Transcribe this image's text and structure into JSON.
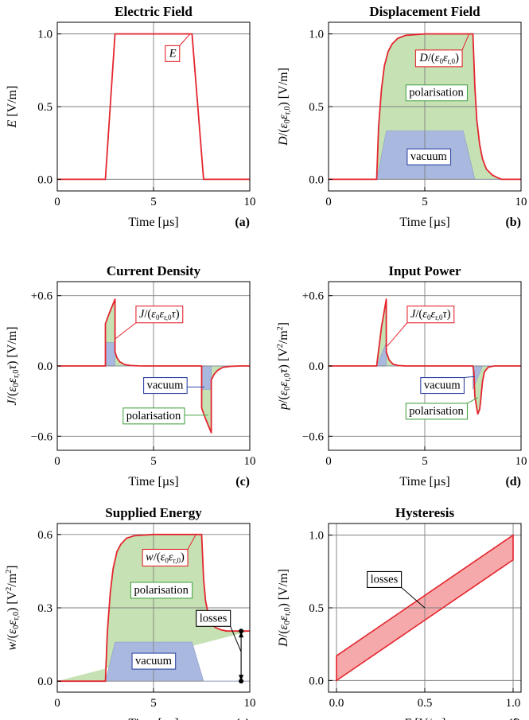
{
  "colors": {
    "curve": "#e3262e",
    "polarisation_fill": "#c6e2b4",
    "vacuum_fill": "#a9b8de",
    "losses_fill": "#f6a9aa",
    "polarisation_box": "#4aa64a",
    "vacuum_box": "#3348a5",
    "curve_box": "#e3262e"
  },
  "labels": {
    "polarisation": "polarisation",
    "vacuum": "vacuum",
    "losses": "losses",
    "time_axis": "Time [µs]"
  },
  "chart_data": [
    {
      "id": "a",
      "letter": "(a)",
      "type": "line",
      "title": "Electric Field",
      "ylabel_html": "<tspan font-style='italic'>E</tspan> [V/m]",
      "xlim": [
        0,
        10
      ],
      "ylim": [
        -0.08,
        1.08
      ],
      "xticks": [
        0,
        5,
        10
      ],
      "xticklabels": [
        "0",
        "5",
        "10"
      ],
      "yticks": [
        0,
        0.5,
        1
      ],
      "yticklabels": [
        "0.0",
        "0.5",
        "1.0"
      ],
      "grid": true,
      "series": [
        {
          "x": [
            0,
            2.5,
            3,
            7,
            7.6,
            10
          ],
          "y": [
            0,
            0,
            1,
            1,
            0,
            0
          ]
        }
      ],
      "callouts": [
        {
          "text_html": "<tspan font-style='italic'>E</tspan>",
          "at": [
            6.9,
            1.0
          ],
          "box_center": [
            6.0,
            0.87
          ],
          "color": "curve"
        }
      ]
    },
    {
      "id": "b",
      "letter": "(b)",
      "type": "area",
      "title": "Displacement Field",
      "ylabel_html": "<tspan font-style='italic'>D</tspan>/(<tspan font-style='italic'>ε</tspan><tspan font-size='10' dy='3'>0</tspan><tspan dy='-3' font-style='italic'>ε</tspan><tspan font-size='10' dy='3'>r,0</tspan><tspan dy='-3'>) [V/m]</tspan>",
      "xlim": [
        0,
        10
      ],
      "ylim": [
        -0.08,
        1.08
      ],
      "xticks": [
        0,
        5,
        10
      ],
      "xticklabels": [
        "0",
        "5",
        "10"
      ],
      "yticks": [
        0,
        0.5,
        1
      ],
      "yticklabels": [
        "0.0",
        "0.5",
        "1.0"
      ],
      "grid": true,
      "series": [
        {
          "role": "polarisation",
          "x": [
            0,
            2.5,
            2.6,
            2.75,
            2.9,
            3.1,
            3.3,
            3.6,
            4,
            5,
            6,
            7,
            7.35,
            7.5,
            7.6,
            7.7,
            7.85,
            8,
            8.2,
            8.5,
            8.8,
            9,
            10
          ],
          "y": [
            0,
            0,
            0.36,
            0.62,
            0.78,
            0.88,
            0.93,
            0.97,
            0.99,
            1,
            1,
            1,
            1,
            1,
            0.64,
            0.41,
            0.24,
            0.14,
            0.07,
            0.03,
            0.01,
            0,
            0
          ]
        },
        {
          "role": "vacuum",
          "x": [
            0,
            2.5,
            3,
            7,
            7.6,
            10
          ],
          "y": [
            0,
            0,
            0.333,
            0.333,
            0,
            0
          ]
        }
      ],
      "callouts": [
        {
          "text_html": "<tspan font-style='italic'>D</tspan>/(<tspan font-style='italic'>ε</tspan><tspan font-size='9' dy='3'>0</tspan><tspan dy='-3' font-style='italic'>ε</tspan><tspan font-size='9' dy='3'>r,0</tspan><tspan dy='-3'>)</tspan>",
          "at": [
            7.3,
            1.0
          ],
          "box_center": [
            5.75,
            0.84
          ],
          "color": "curve"
        },
        {
          "text_key": "polarisation",
          "box_center": [
            5.6,
            0.6
          ],
          "color": "polarisation_box"
        },
        {
          "text_key": "vacuum",
          "box_center": [
            5.2,
            0.16
          ],
          "color": "vacuum_box"
        }
      ]
    },
    {
      "id": "c",
      "letter": "(c)",
      "type": "area",
      "title": "Current Density",
      "ylabel_html": "<tspan font-style='italic'>J</tspan>/(<tspan font-style='italic'>ε</tspan><tspan font-size='10' dy='3'>0</tspan><tspan dy='-3' font-style='italic'>ε</tspan><tspan font-size='10' dy='3'>r,0</tspan><tspan dy='-3' font-style='italic'>τ</tspan><tspan>) [V/m]</tspan>",
      "xlim": [
        0,
        10
      ],
      "ylim": [
        -0.72,
        0.72
      ],
      "xticks": [
        0,
        5,
        10
      ],
      "xticklabels": [
        "0",
        "5",
        "10"
      ],
      "yticks": [
        -0.6,
        0,
        0.6
      ],
      "yticklabels": [
        "−0.6",
        "0.0",
        "+0.6"
      ],
      "grid": true,
      "series": [
        {
          "role": "polarisation",
          "x": [
            0,
            2.5,
            2.5,
            2.7,
            2.9,
            3.0,
            3.0,
            3.1,
            3.25,
            3.5,
            3.8,
            4.2,
            4.6,
            7.5,
            7.5,
            7.7,
            7.9,
            8.0,
            8.0,
            8.15,
            8.35,
            8.6,
            9.0,
            9.5,
            10
          ],
          "y": [
            0,
            0,
            0.36,
            0.45,
            0.53,
            0.57,
            0.12,
            0.07,
            0.035,
            0.012,
            0.004,
            0.001,
            0,
            0,
            -0.36,
            -0.45,
            -0.53,
            -0.57,
            -0.12,
            -0.07,
            -0.035,
            -0.012,
            -0.003,
            0,
            0
          ]
        },
        {
          "role": "vacuum",
          "x": [
            0,
            2.5,
            2.5,
            3.0,
            3.0,
            7.5,
            7.5,
            8.0,
            8.0,
            10
          ],
          "y": [
            0,
            0,
            0.2,
            0.2,
            0,
            0,
            -0.2,
            -0.2,
            0,
            0
          ]
        }
      ],
      "callouts": [
        {
          "text_html": "<tspan font-style='italic'>J</tspan>/(<tspan font-style='italic'>ε</tspan><tspan font-size='9' dy='3'>0</tspan><tspan dy='-3' font-style='italic'>ε</tspan><tspan font-size='9' dy='3'>r,0</tspan><tspan dy='-3' font-style='italic'>τ</tspan><tspan>)</tspan>",
          "at": [
            3.0,
            0.23
          ],
          "box_center": [
            5.3,
            0.45
          ],
          "color": "curve"
        },
        {
          "text_key": "vacuum",
          "at": [
            7.65,
            -0.18
          ],
          "box_center": [
            5.6,
            -0.16
          ],
          "color": "vacuum_box"
        },
        {
          "text_key": "polarisation",
          "at": [
            7.85,
            -0.42
          ],
          "box_center": [
            5.0,
            -0.42
          ],
          "color": "polarisation_box"
        }
      ]
    },
    {
      "id": "d",
      "letter": "(d)",
      "type": "area",
      "title": "Input Power",
      "ylabel_html": "<tspan font-style='italic'>p</tspan>/(<tspan font-style='italic'>ε</tspan><tspan font-size='10' dy='3'>0</tspan><tspan dy='-3' font-style='italic'>ε</tspan><tspan font-size='10' dy='3'>r,0</tspan><tspan dy='-3' font-style='italic'>τ</tspan><tspan>) [V</tspan><tspan font-size='10' dy='-6'>2</tspan><tspan dy='6'>/m</tspan><tspan font-size='10' dy='-6'>2</tspan><tspan dy='6'>]</tspan>",
      "xlim": [
        0,
        10
      ],
      "ylim": [
        -0.72,
        0.72
      ],
      "xticks": [
        0,
        5,
        10
      ],
      "xticklabels": [
        "0",
        "5",
        "10"
      ],
      "yticks": [
        -0.6,
        0,
        0.6
      ],
      "yticklabels": [
        "−0.6",
        "0.0",
        "+0.6"
      ],
      "grid": true,
      "series": [
        {
          "role": "polarisation",
          "x": [
            0,
            2.5,
            2.75,
            3.0,
            3.0,
            3.15,
            3.35,
            3.6,
            4.0,
            4.4,
            7.5,
            7.55,
            7.6,
            7.75,
            7.85,
            7.9,
            8.0,
            8.1,
            8.3,
            8.6,
            10
          ],
          "y": [
            0,
            0,
            0.33,
            0.57,
            0.12,
            0.05,
            0.015,
            0.004,
            0,
            0,
            0,
            -0.05,
            -0.26,
            -0.41,
            -0.37,
            -0.3,
            -0.13,
            -0.05,
            -0.01,
            0,
            0
          ]
        },
        {
          "role": "vacuum",
          "x": [
            0,
            2.5,
            3.0,
            3.0,
            7.5,
            7.5,
            8.0,
            8.0,
            10
          ],
          "y": [
            0,
            0,
            0.2,
            0,
            0,
            -0.2,
            0,
            0,
            0
          ]
        }
      ],
      "callouts": [
        {
          "text_html": "<tspan font-style='italic'>J</tspan>/(<tspan font-style='italic'>ε</tspan><tspan font-size='9' dy='3'>0</tspan><tspan dy='-3' font-style='italic'>ε</tspan><tspan font-size='9' dy='3'>r,0</tspan><tspan dy='-3' font-style='italic'>τ</tspan><tspan>)</tspan>",
          "at": [
            3.05,
            0.17
          ],
          "box_center": [
            5.3,
            0.45
          ],
          "color": "curve"
        },
        {
          "text_key": "vacuum",
          "at": [
            7.6,
            -0.09
          ],
          "box_center": [
            5.9,
            -0.16
          ],
          "color": "vacuum_box"
        },
        {
          "text_key": "polarisation",
          "at": [
            7.75,
            -0.27
          ],
          "box_center": [
            5.6,
            -0.38
          ],
          "color": "polarisation_box"
        }
      ]
    },
    {
      "id": "e",
      "letter": "(e)",
      "type": "area",
      "title": "Supplied Energy",
      "ylabel_html": "<tspan font-style='italic'>w</tspan>/(<tspan font-style='italic'>ε</tspan><tspan font-size='10' dy='3'>0</tspan><tspan dy='-3' font-style='italic'>ε</tspan><tspan font-size='10' dy='3'>r,0</tspan><tspan dy='-3'>) [V</tspan><tspan font-size='10' dy='-6'>2</tspan><tspan dy='6'>/m</tspan><tspan font-size='10' dy='-6'>2</tspan><tspan dy='6'>]</tspan>",
      "xlim": [
        0,
        10
      ],
      "ylim": [
        -0.045,
        0.645
      ],
      "xticks": [
        0,
        5,
        10
      ],
      "xticklabels": [
        "0",
        "5",
        "10"
      ],
      "yticks": [
        0,
        0.3,
        0.6
      ],
      "yticklabels": [
        "0.0",
        "0.3",
        "0.6"
      ],
      "grid": true,
      "series": [
        {
          "role": "polarisation",
          "x": [
            0,
            2.5,
            2.6,
            2.75,
            2.9,
            3.1,
            3.3,
            3.6,
            4,
            5,
            6,
            7,
            7.35,
            7.5,
            7.6,
            7.7,
            7.85,
            8,
            8.2,
            8.5,
            8.8,
            9,
            10
          ],
          "y": [
            0,
            0,
            0.2,
            0.36,
            0.46,
            0.53,
            0.56,
            0.585,
            0.595,
            0.6,
            0.6,
            0.6,
            0.6,
            0.6,
            0.42,
            0.33,
            0.27,
            0.24,
            0.22,
            0.21,
            0.205,
            0.205,
            0.205
          ]
        },
        {
          "role": "vacuum",
          "x": [
            0,
            2.5,
            3,
            7,
            7.6,
            10
          ],
          "y": [
            0,
            0,
            0.16,
            0.16,
            0,
            0
          ]
        }
      ],
      "callouts": [
        {
          "text_html": "<tspan font-style='italic'>w</tspan>/(<tspan font-style='italic'>ε</tspan><tspan font-size='9' dy='3'>0</tspan><tspan dy='-3' font-style='italic'>ε</tspan><tspan font-size='9' dy='3'>r,0</tspan><tspan dy='-3'>)</tspan>",
          "at": [
            7.2,
            0.6
          ],
          "box_center": [
            5.6,
            0.51
          ],
          "color": "curve"
        },
        {
          "text_key": "polarisation",
          "box_center": [
            5.4,
            0.375
          ],
          "color": "polarisation_box"
        },
        {
          "text_key": "vacuum",
          "box_center": [
            5.0,
            0.085
          ],
          "color": "vacuum_box"
        },
        {
          "text_key": "losses",
          "at": [
            9.55,
            0.12
          ],
          "box_center": [
            8.1,
            0.26
          ],
          "color": "black"
        }
      ],
      "losses_marker": {
        "x": 9.55,
        "y_low": 0,
        "y_high": 0.205
      }
    },
    {
      "id": "f",
      "letter": "(f)",
      "type": "line",
      "title": "Hysteresis",
      "xlabel_html": "<tspan font-style='italic'>E</tspan> [V/m]",
      "ylabel_html": "<tspan font-style='italic'>D</tspan>/(<tspan font-style='italic'>ε</tspan><tspan font-size='10' dy='3'>0</tspan><tspan dy='-3' font-style='italic'>ε</tspan><tspan font-size='10' dy='3'>r,0</tspan><tspan dy='-3'>) [V/m]</tspan>",
      "xlim": [
        -0.045,
        1.045
      ],
      "ylim": [
        -0.08,
        1.08
      ],
      "xticks": [
        0,
        0.5,
        1
      ],
      "xticklabels": [
        "0.0",
        "0.5",
        "1.0"
      ],
      "yticks": [
        0,
        0.5,
        1
      ],
      "yticklabels": [
        "0.0",
        "0.5",
        "1.0"
      ],
      "grid": true,
      "series": [
        {
          "role": "losses",
          "x": [
            0,
            1,
            1,
            0
          ],
          "y": [
            0,
            0.83,
            1,
            0.17
          ]
        }
      ],
      "callouts": [
        {
          "text_key": "losses",
          "at": [
            0.5,
            0.5
          ],
          "box_center": [
            0.27,
            0.7
          ],
          "color": "black"
        }
      ]
    }
  ]
}
